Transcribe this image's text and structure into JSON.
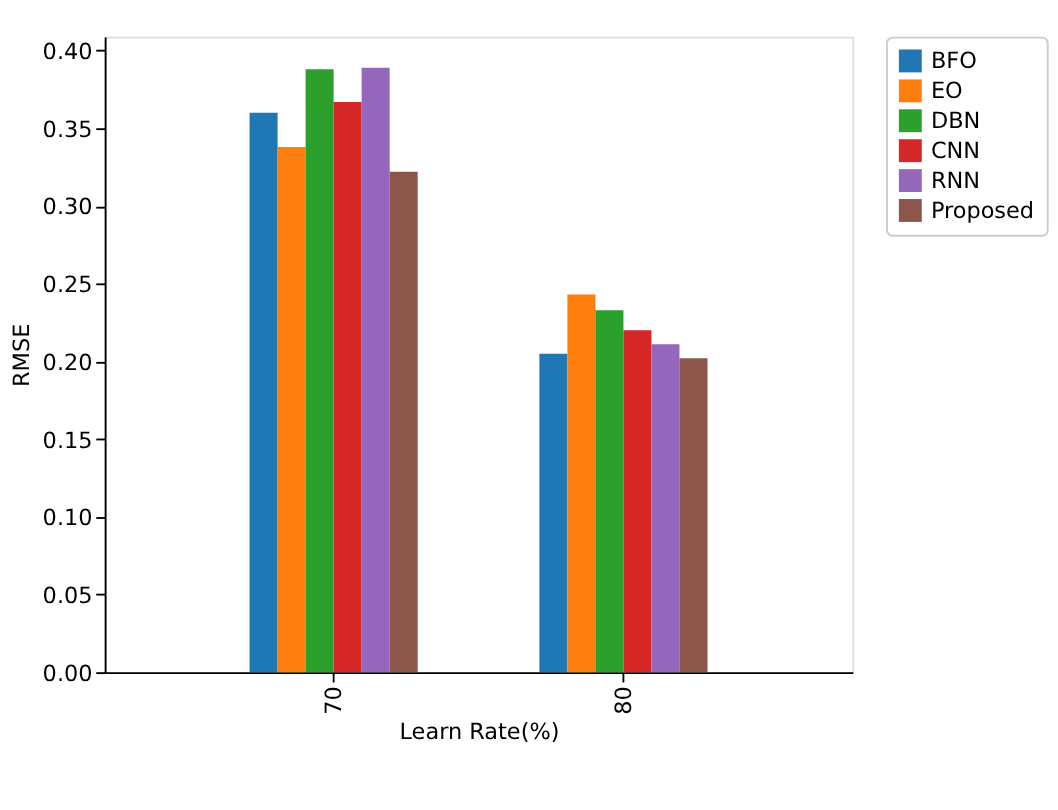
{
  "chart_data": {
    "type": "bar",
    "xlabel": "Learn Rate(%)",
    "ylabel": "RMSE",
    "categories": [
      "70",
      "80"
    ],
    "series": [
      {
        "name": "BFO",
        "color": "#1f77b4",
        "values": [
          0.36,
          0.205
        ]
      },
      {
        "name": "EO",
        "color": "#ff7f0e",
        "values": [
          0.338,
          0.243
        ]
      },
      {
        "name": "DBN",
        "color": "#2ca02c",
        "values": [
          0.388,
          0.233
        ]
      },
      {
        "name": "CNN",
        "color": "#d62728",
        "values": [
          0.367,
          0.22
        ]
      },
      {
        "name": "RNN",
        "color": "#9467bd",
        "values": [
          0.389,
          0.211
        ]
      },
      {
        "name": "Proposed",
        "color": "#8c564b",
        "values": [
          0.322,
          0.202
        ]
      }
    ],
    "ylim": [
      0,
      0.409
    ],
    "yticks": [
      {
        "value": 0,
        "label": "0.00"
      },
      0.05,
      {
        "value": 0.1,
        "label": "0.10"
      },
      0.15,
      {
        "value": 0.2,
        "label": "0.20"
      },
      0.25,
      {
        "value": 0.3,
        "label": "0.30"
      },
      0.35,
      {
        "value": 0.4,
        "label": "0.40"
      }
    ],
    "grid": false,
    "legend": "right"
  }
}
